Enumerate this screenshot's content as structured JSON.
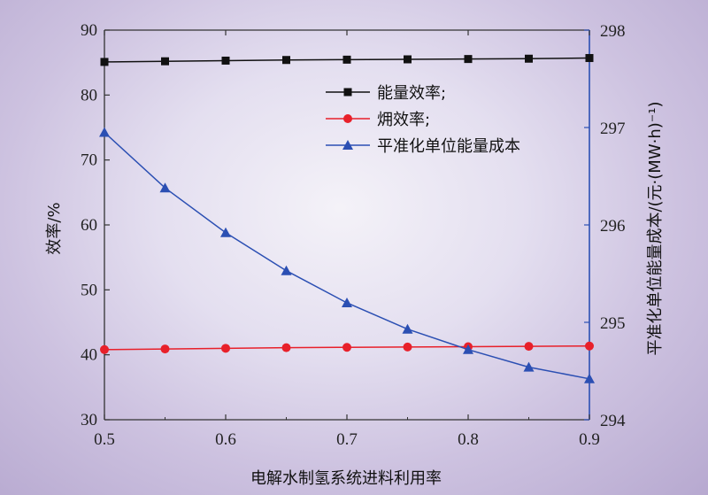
{
  "chart_data": {
    "type": "line",
    "x": [
      0.5,
      0.55,
      0.6,
      0.65,
      0.7,
      0.75,
      0.8,
      0.85,
      0.9
    ],
    "xlabel": "电解水制氢系统进料利用率",
    "ylabel_left": "效率/%",
    "ylabel_right": "平准化单位能量成本/(元·(MW·h)⁻¹)",
    "xlim": [
      0.5,
      0.9
    ],
    "ylim_left": [
      30,
      90
    ],
    "ylim_right": [
      294,
      298
    ],
    "x_ticks": [
      "0.5",
      "0.6",
      "0.7",
      "0.8",
      "0.9"
    ],
    "y_left_ticks": [
      "30",
      "40",
      "50",
      "60",
      "70",
      "80",
      "90"
    ],
    "y_right_ticks": [
      "294",
      "295",
      "296",
      "297",
      "298"
    ],
    "legend_position": "top-right",
    "grid": false,
    "series": [
      {
        "name": "能量效率;",
        "axis": "left",
        "marker": "square",
        "color": "#111111",
        "values": [
          85.1,
          85.2,
          85.3,
          85.4,
          85.45,
          85.5,
          85.55,
          85.6,
          85.7
        ]
      },
      {
        "name": "㶲效率;",
        "axis": "left",
        "marker": "circle",
        "color": "#e8202a",
        "values": [
          40.8,
          40.9,
          41.0,
          41.1,
          41.15,
          41.2,
          41.25,
          41.3,
          41.35
        ]
      },
      {
        "name": "平准化单位能量成本",
        "axis": "right",
        "marker": "triangle",
        "color": "#2b4fb3",
        "values": [
          296.95,
          296.38,
          295.92,
          295.53,
          295.2,
          294.93,
          294.72,
          294.54,
          294.42
        ]
      }
    ]
  }
}
